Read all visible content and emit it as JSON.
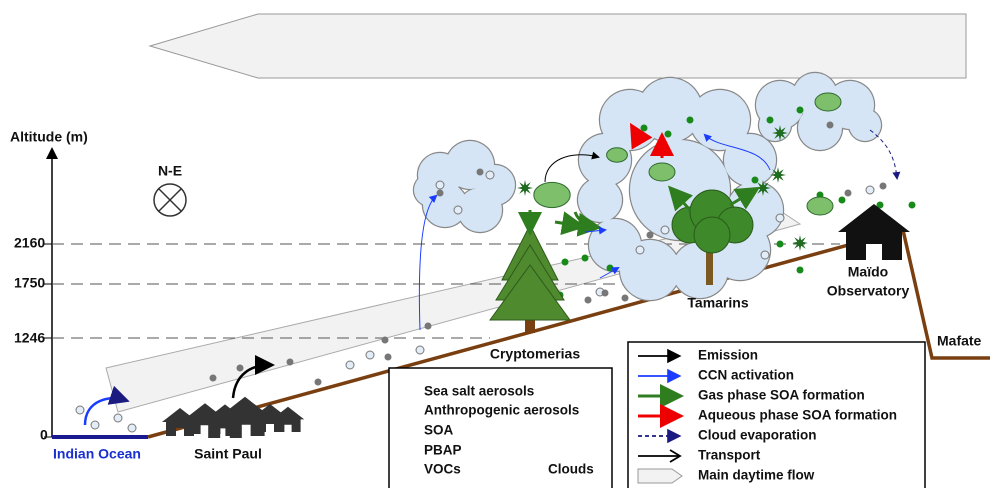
{
  "axis": {
    "label": "Altitude (m)",
    "ticks": [
      2160,
      1750,
      1246,
      0
    ],
    "direction": "N-E"
  },
  "places": {
    "ocean": "Indian Ocean",
    "town": "Saint Paul",
    "forest": "Cryptomerias",
    "tamarins": "Tamarins",
    "observatory": [
      "Maïdo",
      "Observatory"
    ],
    "mafate": "Mafate"
  },
  "legend_particles": [
    "Sea salt aerosols",
    "Anthropogenic aerosols",
    "SOA",
    "PBAP",
    "VOCs",
    "Clouds"
  ],
  "legend_processes": [
    "Emission",
    "CCN activation",
    "Gas phase SOA formation",
    "Aqueous phase SOA formation",
    "Cloud evaporation",
    "Transport",
    "Main daytime flow"
  ]
}
